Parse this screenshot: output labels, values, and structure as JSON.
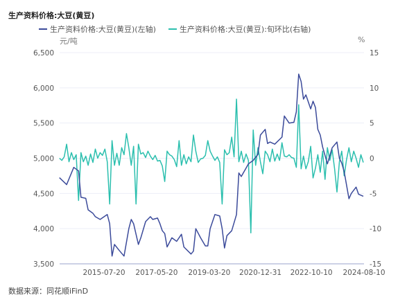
{
  "chart_data": {
    "type": "line",
    "title": "生产资料价格:大豆(黄豆)",
    "left_unit": "元/吨",
    "right_unit": "%",
    "source": "数据来源：同花顺iFinD",
    "legend_placement": "top",
    "grid": true,
    "x_ticks": [
      "2015-07-20",
      "2017-05-20",
      "2019-03-20",
      "2020-12-31",
      "2022-10-10",
      "2024-08-10"
    ],
    "x_range": [
      "2014-01",
      "2024-08"
    ],
    "y_left": {
      "range": [
        3500,
        6500
      ],
      "ticks": [
        3500,
        4000,
        4500,
        5000,
        5500,
        6000,
        6500
      ],
      "tick_labels": [
        "3,500",
        "4,000",
        "4,500",
        "5,000",
        "5,500",
        "6,000",
        "6,500"
      ]
    },
    "y_right": {
      "range": [
        -15,
        15
      ],
      "ticks": [
        -15,
        -10,
        -5,
        0,
        5,
        10,
        15
      ],
      "tick_labels": [
        "-15",
        "-10",
        "-5",
        "0",
        "5",
        "10",
        "15"
      ]
    },
    "series": [
      {
        "name": "生产资料价格:大豆(黄豆)(左轴)",
        "axis": "left",
        "color": "#3b4a9a",
        "points": [
          [
            "2014-01",
            4724
          ],
          [
            "2014-04",
            4625
          ],
          [
            "2014-07",
            4870
          ],
          [
            "2014-09",
            4820
          ],
          [
            "2014-10",
            4445
          ],
          [
            "2014-12",
            4430
          ],
          [
            "2015-01",
            4267
          ],
          [
            "2015-03",
            4218
          ],
          [
            "2015-04",
            4170
          ],
          [
            "2015-06",
            4130
          ],
          [
            "2015-09",
            4200
          ],
          [
            "2015-10",
            4070
          ],
          [
            "2015-11",
            3610
          ],
          [
            "2015-12",
            3775
          ],
          [
            "2016-02",
            3690
          ],
          [
            "2016-04",
            3610
          ],
          [
            "2016-06",
            4000
          ],
          [
            "2016-07",
            4130
          ],
          [
            "2016-08",
            4070
          ],
          [
            "2016-10",
            3775
          ],
          [
            "2016-11",
            3870
          ],
          [
            "2017-01",
            4100
          ],
          [
            "2017-03",
            4170
          ],
          [
            "2017-04",
            4130
          ],
          [
            "2017-06",
            4150
          ],
          [
            "2017-07",
            4070
          ],
          [
            "2017-08",
            3970
          ],
          [
            "2017-09",
            3930
          ],
          [
            "2017-10",
            3740
          ],
          [
            "2017-12",
            3870
          ],
          [
            "2018-02",
            3820
          ],
          [
            "2018-04",
            3920
          ],
          [
            "2018-05",
            3740
          ],
          [
            "2018-08",
            3640
          ],
          [
            "2018-09",
            3680
          ],
          [
            "2018-10",
            4000
          ],
          [
            "2018-12",
            3870
          ],
          [
            "2019-02",
            3755
          ],
          [
            "2019-03",
            3755
          ],
          [
            "2019-04",
            4000
          ],
          [
            "2019-06",
            4200
          ],
          [
            "2019-08",
            4180
          ],
          [
            "2019-09",
            4000
          ],
          [
            "2019-10",
            3725
          ],
          [
            "2019-11",
            3900
          ],
          [
            "2020-01",
            3970
          ],
          [
            "2020-03",
            4200
          ],
          [
            "2020-04",
            4790
          ],
          [
            "2020-05",
            4740
          ],
          [
            "2020-07",
            4860
          ],
          [
            "2020-08",
            4920
          ],
          [
            "2020-10",
            4970
          ],
          [
            "2020-12",
            5055
          ],
          [
            "2021-01",
            5330
          ],
          [
            "2021-03",
            5410
          ],
          [
            "2021-04",
            5210
          ],
          [
            "2021-05",
            5230
          ],
          [
            "2021-07",
            5200
          ],
          [
            "2021-10",
            5300
          ],
          [
            "2021-11",
            5600
          ],
          [
            "2022-01",
            5500
          ],
          [
            "2022-03",
            5510
          ],
          [
            "2022-04",
            5660
          ],
          [
            "2022-05",
            6195
          ],
          [
            "2022-06",
            6090
          ],
          [
            "2022-07",
            5840
          ],
          [
            "2022-08",
            5900
          ],
          [
            "2022-10",
            5700
          ],
          [
            "2022-11",
            5810
          ],
          [
            "2022-12",
            5720
          ],
          [
            "2023-01",
            5410
          ],
          [
            "2023-02",
            5330
          ],
          [
            "2023-03",
            5160
          ],
          [
            "2023-05",
            4920
          ],
          [
            "2023-07",
            5150
          ],
          [
            "2023-09",
            5230
          ],
          [
            "2023-10",
            5000
          ],
          [
            "2023-11",
            4930
          ],
          [
            "2023-12",
            4810
          ],
          [
            "2024-02",
            4425
          ],
          [
            "2024-03",
            4500
          ],
          [
            "2024-05",
            4590
          ],
          [
            "2024-06",
            4490
          ],
          [
            "2024-08",
            4460
          ]
        ]
      },
      {
        "name": "生产资料价格:大豆(黄豆):旬环比(右轴)",
        "axis": "right",
        "color": "#2bbfae",
        "points": [
          [
            "2014-01",
            0
          ],
          [
            "2014-02",
            -0.3
          ],
          [
            "2014-03",
            0.2
          ],
          [
            "2014-04",
            2
          ],
          [
            "2014-05",
            -0.5
          ],
          [
            "2014-06",
            0.8
          ],
          [
            "2014-07",
            -0.2
          ],
          [
            "2014-08",
            0.5
          ],
          [
            "2014-09",
            -6
          ],
          [
            "2014-10",
            0.8
          ],
          [
            "2014-11",
            -0.5
          ],
          [
            "2014-12",
            0.3
          ],
          [
            "2015-01",
            -1
          ],
          [
            "2015-02",
            0.6
          ],
          [
            "2015-03",
            -0.6
          ],
          [
            "2015-04",
            1.3
          ],
          [
            "2015-05",
            0
          ],
          [
            "2015-06",
            0.8
          ],
          [
            "2015-07",
            0.4
          ],
          [
            "2015-08",
            1.3
          ],
          [
            "2015-09",
            -0.5
          ],
          [
            "2015-10",
            -6.5
          ],
          [
            "2015-11",
            2.5
          ],
          [
            "2015-12",
            -1
          ],
          [
            "2016-01",
            0.7
          ],
          [
            "2016-02",
            -1
          ],
          [
            "2016-03",
            1.5
          ],
          [
            "2016-04",
            0.5
          ],
          [
            "2016-05",
            3.5
          ],
          [
            "2016-06",
            1.5
          ],
          [
            "2016-07",
            -1
          ],
          [
            "2016-08",
            1.7
          ],
          [
            "2016-09",
            -6.5
          ],
          [
            "2016-10",
            2
          ],
          [
            "2016-11",
            0.6
          ],
          [
            "2016-12",
            0.8
          ],
          [
            "2017-01",
            0.1
          ],
          [
            "2017-02",
            1
          ],
          [
            "2017-03",
            0.3
          ],
          [
            "2017-04",
            -0.2
          ],
          [
            "2017-05",
            0.4
          ],
          [
            "2017-06",
            -0.4
          ],
          [
            "2017-07",
            -0.3
          ],
          [
            "2017-08",
            -1.1
          ],
          [
            "2017-09",
            -3.3
          ],
          [
            "2017-10",
            1
          ],
          [
            "2017-11",
            0.5
          ],
          [
            "2017-12",
            0.3
          ],
          [
            "2018-01",
            -0.2
          ],
          [
            "2018-02",
            -1.2
          ],
          [
            "2018-03",
            2.5
          ],
          [
            "2018-04",
            -1
          ],
          [
            "2018-05",
            0.5
          ],
          [
            "2018-06",
            -0.8
          ],
          [
            "2018-07",
            0.2
          ],
          [
            "2018-08",
            -0.5
          ],
          [
            "2018-09",
            3.3
          ],
          [
            "2018-10",
            1
          ],
          [
            "2018-11",
            -0.6
          ],
          [
            "2018-12",
            -0.1
          ],
          [
            "2019-01",
            0
          ],
          [
            "2019-02",
            0.4
          ],
          [
            "2019-03",
            2.5
          ],
          [
            "2019-04",
            1
          ],
          [
            "2019-05",
            0.3
          ],
          [
            "2019-06",
            -0.3
          ],
          [
            "2019-07",
            0.2
          ],
          [
            "2019-08",
            -0.6
          ],
          [
            "2019-09",
            -6.5
          ],
          [
            "2019-10",
            1.2
          ],
          [
            "2019-11",
            0.5
          ],
          [
            "2019-12",
            0.8
          ],
          [
            "2020-01",
            3
          ],
          [
            "2020-02",
            0.2
          ],
          [
            "2020-03",
            8.4
          ],
          [
            "2020-04",
            -0.5
          ],
          [
            "2020-05",
            1
          ],
          [
            "2020-06",
            -0.6
          ],
          [
            "2020-07",
            0.6
          ],
          [
            "2020-08",
            -0.3
          ],
          [
            "2020-09",
            -10.6
          ],
          [
            "2020-10",
            4
          ],
          [
            "2020-11",
            -1
          ],
          [
            "2020-12",
            1.5
          ],
          [
            "2021-01",
            -0.5
          ],
          [
            "2021-02",
            -2.2
          ],
          [
            "2021-03",
            1
          ],
          [
            "2021-04",
            0.5
          ],
          [
            "2021-05",
            -0.5
          ],
          [
            "2021-06",
            1.3
          ],
          [
            "2021-07",
            -0.4
          ],
          [
            "2021-08",
            0.6
          ],
          [
            "2021-09",
            -0.3
          ],
          [
            "2021-10",
            2.2
          ],
          [
            "2021-11",
            0.3
          ],
          [
            "2021-12",
            0.2
          ],
          [
            "2022-01",
            0.5
          ],
          [
            "2022-02",
            0.1
          ],
          [
            "2022-03",
            0
          ],
          [
            "2022-04",
            -1.3
          ],
          [
            "2022-05",
            7.6
          ],
          [
            "2022-06",
            -1.5
          ],
          [
            "2022-07",
            0.3
          ],
          [
            "2022-08",
            -1.5
          ],
          [
            "2022-09",
            -0.5
          ],
          [
            "2022-10",
            1.7
          ],
          [
            "2022-11",
            -2.8
          ],
          [
            "2022-12",
            -1.4
          ],
          [
            "2023-01",
            0.5
          ],
          [
            "2023-02",
            -2
          ],
          [
            "2023-03",
            1
          ],
          [
            "2023-04",
            -3
          ],
          [
            "2023-05",
            1.5
          ],
          [
            "2023-06",
            -0.3
          ],
          [
            "2023-07",
            1.2
          ],
          [
            "2023-08",
            -1.5
          ],
          [
            "2023-09",
            -4.8
          ],
          [
            "2023-10",
            -0.5
          ],
          [
            "2023-11",
            1
          ],
          [
            "2023-12",
            -2.5
          ],
          [
            "2024-01",
            -0.2
          ],
          [
            "2024-02",
            1.5
          ],
          [
            "2024-03",
            -0.5
          ],
          [
            "2024-04",
            1
          ],
          [
            "2024-05",
            0
          ],
          [
            "2024-06",
            -1.3
          ],
          [
            "2024-07",
            0.5
          ],
          [
            "2024-08",
            -0.6
          ]
        ]
      }
    ]
  }
}
